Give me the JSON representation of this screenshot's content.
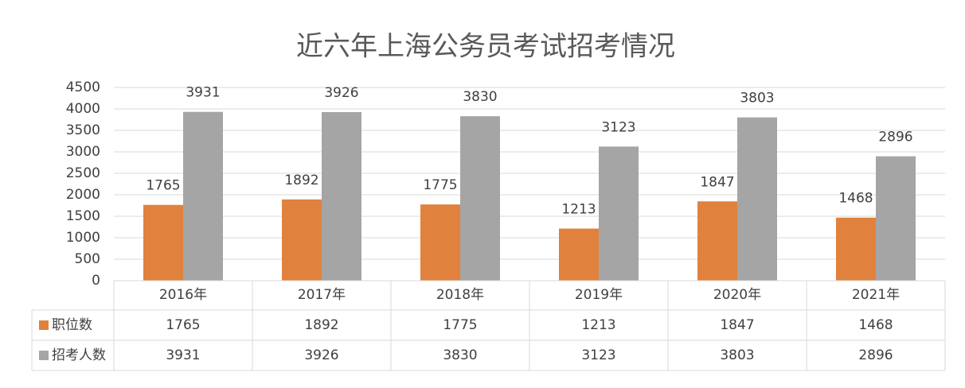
{
  "chart_data": {
    "type": "bar",
    "title": "近六年上海公务员考试招考情况",
    "categories": [
      "2016年",
      "2017年",
      "2018年",
      "2019年",
      "2020年",
      "2021年"
    ],
    "series": [
      {
        "name": "职位数",
        "color": "#e0823d",
        "values": [
          1765,
          1892,
          1775,
          1213,
          1847,
          1468
        ]
      },
      {
        "name": "招考人数",
        "color": "#a5a5a5",
        "values": [
          3931,
          3926,
          3830,
          3123,
          3803,
          2896
        ]
      }
    ],
    "ylim": [
      0,
      4500
    ],
    "yticks": [
      0,
      500,
      1000,
      1500,
      2000,
      2500,
      3000,
      3500,
      4000,
      4500
    ],
    "grid": true,
    "data_labels": true,
    "data_table": true
  }
}
